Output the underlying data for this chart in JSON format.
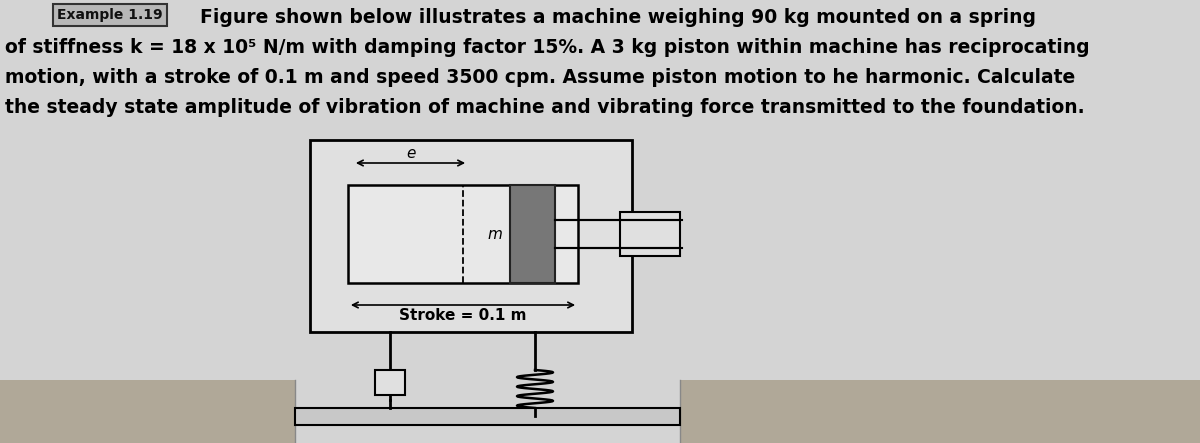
{
  "bg_color": "#d4d4d4",
  "text_color": "#000000",
  "header_line1": "Figure shown below illustrates a machine weighing 90 kg mounted on a spring",
  "header_line2": "of stiffness k = 18 x 10⁵ N/m with damping factor 15%. A 3 kg piston within machine has reciprocating",
  "header_line3": "motion, with a stroke of 0.1 m and speed 3500 cpm. Assume piston motion to he harmonic. Calculate",
  "header_line4": "the steady state amplitude of vibration of machine and vibrating force transmitted to the foundation.",
  "example_label": "Example 1.19",
  "stroke_label": "Stroke = 0.1 m",
  "font_size_header": 13.5,
  "font_size_label": 11,
  "font_size_example": 10
}
